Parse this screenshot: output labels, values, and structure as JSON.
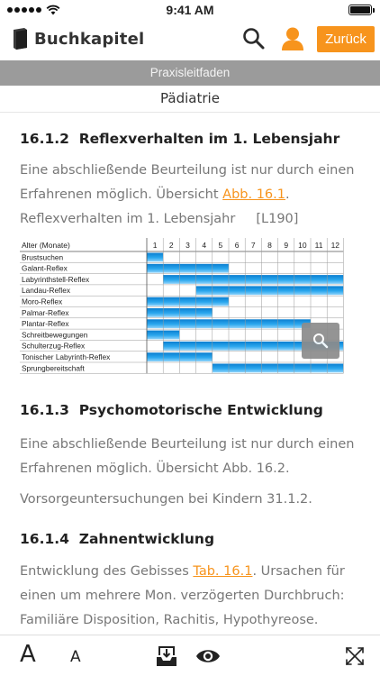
{
  "status": {
    "time": "9:41 AM"
  },
  "header": {
    "app_name": "Buchkapitel",
    "back_label": "Zurück"
  },
  "section_bar": {
    "title": "Praxisleitfaden"
  },
  "chapter": {
    "title": "Pädiatrie"
  },
  "content": {
    "s1": {
      "number": "16.1.2",
      "title": "Reflexverhalten im 1. Lebensjahr",
      "line1": "Eine abschließende Beurteilung ist nur durch einen",
      "line2_pre": "Erfahrenen möglich. Übersicht ",
      "line2_link": "Abb. 16.1",
      "line2_post": ".",
      "caption": "Reflexverhalten im 1. Lebensjahr",
      "caption_ref": "[L190]"
    },
    "s2": {
      "number": "16.1.3",
      "title": "Psychomotorische Entwicklung",
      "line1": "Eine abschließende Beurteilung ist nur durch einen",
      "line2": "Erfahrenen möglich. Übersicht Abb. 16.2.",
      "line3": "Vorsorgeuntersuchungen bei Kindern 31.1.2."
    },
    "s3": {
      "number": "16.1.4",
      "title": "Zahnentwicklung",
      "line1_pre": "Entwicklung des Gebisses ",
      "line1_link": "Tab. 16.1",
      "line1_post": ". Ursachen für",
      "line2": "einen um mehrere Mon. verzögerten Durchbruch:",
      "line3": "Familiäre Disposition, Rachitis, Hypothyreose."
    }
  },
  "chart_data": {
    "type": "table",
    "header_label": "Alter (Monate)",
    "months": [
      "1",
      "2",
      "3",
      "4",
      "5",
      "6",
      "7",
      "8",
      "9",
      "10",
      "11",
      "12"
    ],
    "rows": [
      {
        "name": "Brustsuchen",
        "start": 0,
        "end": 1
      },
      {
        "name": "Galant-Reflex",
        "start": 0,
        "end": 5
      },
      {
        "name": "Labyrinthstell-Reflex",
        "start": 1,
        "end": 13
      },
      {
        "name": "Landau-Reflex",
        "start": 3,
        "end": 13
      },
      {
        "name": "Moro-Reflex",
        "start": 0,
        "end": 5
      },
      {
        "name": "Palmar-Reflex",
        "start": 0,
        "end": 4
      },
      {
        "name": "Plantar-Reflex",
        "start": 0,
        "end": 10
      },
      {
        "name": "Schreitbewegungen",
        "start": 0,
        "end": 2
      },
      {
        "name": "Schulterzug-Reflex",
        "start": 1,
        "end": 13
      },
      {
        "name": "Tonischer Labyrinth-Reflex",
        "start": 0,
        "end": 4
      },
      {
        "name": "Sprungbereitschaft",
        "start": 4,
        "end": 13
      }
    ],
    "bar_color": "#1a96e0"
  },
  "toolbar": {
    "font_large": "A",
    "font_small": "A"
  },
  "colors": {
    "accent": "#f7941d",
    "section_bar": "#9b9b9b"
  }
}
